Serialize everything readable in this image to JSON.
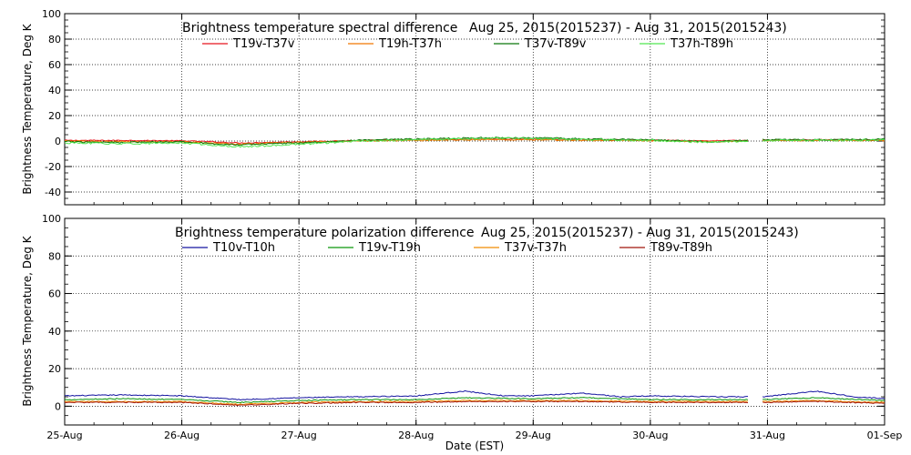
{
  "chart_data": [
    {
      "type": "line",
      "title": "Brightness temperature spectral difference",
      "date_range": "Aug 25, 2015(2015237) - Aug 31, 2015(2015243)",
      "xlabel": "",
      "ylabel": "Brightness Temperature, Deg K",
      "xlim": [
        "2015-08-25",
        "2015-09-01"
      ],
      "ylim": [
        -50,
        100
      ],
      "yticks": [
        -40,
        -20,
        0,
        20,
        40,
        60,
        80,
        100
      ],
      "grid": true,
      "legend_position": "top",
      "gaps": [
        [
          "2015-08-30T20:00",
          "2015-08-30T23:00"
        ]
      ],
      "series": [
        {
          "name": "T19v-T37v",
          "color": "#e8141e",
          "points": [
            [
              "2015-08-25T00:00",
              0.5
            ],
            [
              "2015-08-25T12:00",
              0.5
            ],
            [
              "2015-08-26T00:00",
              0.2
            ],
            [
              "2015-08-26T06:00",
              -0.5
            ],
            [
              "2015-08-26T12:00",
              -1.5
            ],
            [
              "2015-08-26T18:00",
              -1.0
            ],
            [
              "2015-08-27T00:00",
              -0.5
            ],
            [
              "2015-08-27T12:00",
              0.5
            ],
            [
              "2015-08-28T00:00",
              1.0
            ],
            [
              "2015-08-28T12:00",
              1.5
            ],
            [
              "2015-08-29T00:00",
              1.5
            ],
            [
              "2015-08-29T12:00",
              1.0
            ],
            [
              "2015-08-30T00:00",
              0.8
            ],
            [
              "2015-08-30T12:00",
              0.2
            ],
            [
              "2015-08-30T20:00",
              0.5
            ],
            [
              "2015-08-30T23:00",
              0.8
            ],
            [
              "2015-08-31T12:00",
              1.0
            ],
            [
              "2015-09-01T00:00",
              0.8
            ]
          ]
        },
        {
          "name": "T19h-T37h",
          "color": "#f07800",
          "points": [
            [
              "2015-08-25T00:00",
              0.0
            ],
            [
              "2015-08-25T12:00",
              -0.5
            ],
            [
              "2015-08-26T00:00",
              -0.5
            ],
            [
              "2015-08-26T06:00",
              -1.5
            ],
            [
              "2015-08-26T12:00",
              -2.5
            ],
            [
              "2015-08-26T18:00",
              -1.5
            ],
            [
              "2015-08-27T00:00",
              -1.0
            ],
            [
              "2015-08-27T12:00",
              0.0
            ],
            [
              "2015-08-28T00:00",
              0.5
            ],
            [
              "2015-08-28T12:00",
              1.0
            ],
            [
              "2015-08-29T00:00",
              1.0
            ],
            [
              "2015-08-29T12:00",
              0.5
            ],
            [
              "2015-08-30T00:00",
              0.3
            ],
            [
              "2015-08-30T12:00",
              -0.5
            ],
            [
              "2015-08-30T20:00",
              0.0
            ],
            [
              "2015-08-30T23:00",
              0.3
            ],
            [
              "2015-08-31T12:00",
              0.5
            ],
            [
              "2015-09-01T00:00",
              0.5
            ]
          ]
        },
        {
          "name": "T37v-T89v",
          "color": "#0a780a",
          "points": [
            [
              "2015-08-25T00:00",
              -0.5
            ],
            [
              "2015-08-25T12:00",
              -1.0
            ],
            [
              "2015-08-26T00:00",
              -0.5
            ],
            [
              "2015-08-26T06:00",
              -2.0
            ],
            [
              "2015-08-26T12:00",
              -3.0
            ],
            [
              "2015-08-26T18:00",
              -2.0
            ],
            [
              "2015-08-27T00:00",
              -1.5
            ],
            [
              "2015-08-27T12:00",
              0.5
            ],
            [
              "2015-08-28T00:00",
              1.5
            ],
            [
              "2015-08-28T12:00",
              2.5
            ],
            [
              "2015-08-29T00:00",
              2.5
            ],
            [
              "2015-08-29T12:00",
              1.5
            ],
            [
              "2015-08-30T00:00",
              1.0
            ],
            [
              "2015-08-30T12:00",
              -0.5
            ],
            [
              "2015-08-30T20:00",
              0.5
            ],
            [
              "2015-08-30T23:00",
              1.0
            ],
            [
              "2015-08-31T12:00",
              1.0
            ],
            [
              "2015-09-01T00:00",
              1.5
            ]
          ]
        },
        {
          "name": "T37h-T89h",
          "color": "#50e650",
          "points": [
            [
              "2015-08-25T00:00",
              -1.5
            ],
            [
              "2015-08-25T12:00",
              -2.0
            ],
            [
              "2015-08-26T00:00",
              -1.5
            ],
            [
              "2015-08-26T06:00",
              -3.0
            ],
            [
              "2015-08-26T12:00",
              -4.5
            ],
            [
              "2015-08-26T18:00",
              -3.5
            ],
            [
              "2015-08-27T00:00",
              -2.5
            ],
            [
              "2015-08-27T12:00",
              0.0
            ],
            [
              "2015-08-28T00:00",
              1.0
            ],
            [
              "2015-08-28T12:00",
              2.0
            ],
            [
              "2015-08-29T00:00",
              2.0
            ],
            [
              "2015-08-29T12:00",
              1.0
            ],
            [
              "2015-08-30T00:00",
              0.5
            ],
            [
              "2015-08-30T12:00",
              -1.0
            ],
            [
              "2015-08-30T20:00",
              0.0
            ],
            [
              "2015-08-30T23:00",
              0.5
            ],
            [
              "2015-08-31T12:00",
              0.5
            ],
            [
              "2015-09-01T00:00",
              1.0
            ]
          ]
        }
      ]
    },
    {
      "type": "line",
      "title": "Brightness temperature polarization difference",
      "date_range": "Aug 25, 2015(2015237) - Aug 31, 2015(2015243)",
      "xlabel": "Date (EST)",
      "ylabel": "Brightness Temperature, Deg K",
      "xlim": [
        "2015-08-25",
        "2015-09-01"
      ],
      "ylim": [
        -10,
        100
      ],
      "yticks": [
        0,
        20,
        40,
        60,
        80,
        100
      ],
      "xticks": [
        {
          "date": "2015-08-25",
          "label": "25-Aug"
        },
        {
          "date": "2015-08-26",
          "label": "26-Aug"
        },
        {
          "date": "2015-08-27",
          "label": "27-Aug"
        },
        {
          "date": "2015-08-28",
          "label": "28-Aug"
        },
        {
          "date": "2015-08-29",
          "label": "29-Aug"
        },
        {
          "date": "2015-08-30",
          "label": "30-Aug"
        },
        {
          "date": "2015-08-31",
          "label": "31-Aug"
        },
        {
          "date": "2015-09-01",
          "label": "01-Sep"
        }
      ],
      "grid": true,
      "legend_position": "top",
      "gaps": [
        [
          "2015-08-30T20:00",
          "2015-08-30T23:00"
        ]
      ],
      "series": [
        {
          "name": "T10v-T10h",
          "color": "#1414a0",
          "points": [
            [
              "2015-08-25T00:00",
              5.5
            ],
            [
              "2015-08-25T12:00",
              6.0
            ],
            [
              "2015-08-26T00:00",
              5.5
            ],
            [
              "2015-08-26T12:00",
              3.5
            ],
            [
              "2015-08-27T00:00",
              4.5
            ],
            [
              "2015-08-27T12:00",
              5.0
            ],
            [
              "2015-08-28T00:00",
              5.5
            ],
            [
              "2015-08-28T10:00",
              8.0
            ],
            [
              "2015-08-28T18:00",
              5.5
            ],
            [
              "2015-08-29T00:00",
              5.5
            ],
            [
              "2015-08-29T10:00",
              7.0
            ],
            [
              "2015-08-29T18:00",
              5.0
            ],
            [
              "2015-08-30T00:00",
              5.5
            ],
            [
              "2015-08-30T12:00",
              5.0
            ],
            [
              "2015-08-30T20:00",
              5.0
            ],
            [
              "2015-08-30T23:00",
              5.0
            ],
            [
              "2015-08-31T10:00",
              8.0
            ],
            [
              "2015-08-31T18:00",
              5.0
            ],
            [
              "2015-09-01T00:00",
              4.0
            ]
          ]
        },
        {
          "name": "T19v-T19h",
          "color": "#0a960a",
          "points": [
            [
              "2015-08-25T00:00",
              3.5
            ],
            [
              "2015-08-25T12:00",
              4.0
            ],
            [
              "2015-08-26T00:00",
              3.5
            ],
            [
              "2015-08-26T12:00",
              2.0
            ],
            [
              "2015-08-27T00:00",
              3.0
            ],
            [
              "2015-08-27T12:00",
              3.5
            ],
            [
              "2015-08-28T00:00",
              3.5
            ],
            [
              "2015-08-28T10:00",
              4.5
            ],
            [
              "2015-08-29T00:00",
              4.0
            ],
            [
              "2015-08-29T10:00",
              4.5
            ],
            [
              "2015-08-30T00:00",
              3.5
            ],
            [
              "2015-08-30T20:00",
              3.5
            ],
            [
              "2015-08-30T23:00",
              3.5
            ],
            [
              "2015-08-31T10:00",
              4.5
            ],
            [
              "2015-09-01T00:00",
              3.0
            ]
          ]
        },
        {
          "name": "T37v-T37h",
          "color": "#f08c00",
          "points": [
            [
              "2015-08-25T00:00",
              2.5
            ],
            [
              "2015-08-25T12:00",
              2.5
            ],
            [
              "2015-08-26T00:00",
              2.5
            ],
            [
              "2015-08-26T12:00",
              1.0
            ],
            [
              "2015-08-27T00:00",
              2.0
            ],
            [
              "2015-08-27T12:00",
              2.5
            ],
            [
              "2015-08-28T00:00",
              2.5
            ],
            [
              "2015-08-28T10:00",
              3.0
            ],
            [
              "2015-08-29T00:00",
              3.0
            ],
            [
              "2015-08-29T10:00",
              3.0
            ],
            [
              "2015-08-30T00:00",
              2.5
            ],
            [
              "2015-08-30T20:00",
              2.5
            ],
            [
              "2015-08-30T23:00",
              2.5
            ],
            [
              "2015-08-31T10:00",
              3.0
            ],
            [
              "2015-09-01T00:00",
              2.0
            ]
          ]
        },
        {
          "name": "T89v-T89h",
          "color": "#a0140a",
          "points": [
            [
              "2015-08-25T00:00",
              2.0
            ],
            [
              "2015-08-25T12:00",
              2.0
            ],
            [
              "2015-08-26T00:00",
              2.0
            ],
            [
              "2015-08-26T12:00",
              0.5
            ],
            [
              "2015-08-27T00:00",
              1.5
            ],
            [
              "2015-08-27T12:00",
              2.0
            ],
            [
              "2015-08-28T00:00",
              2.0
            ],
            [
              "2015-08-28T10:00",
              2.5
            ],
            [
              "2015-08-29T00:00",
              2.5
            ],
            [
              "2015-08-29T10:00",
              2.5
            ],
            [
              "2015-08-30T00:00",
              2.0
            ],
            [
              "2015-08-30T20:00",
              2.0
            ],
            [
              "2015-08-30T23:00",
              2.0
            ],
            [
              "2015-08-31T10:00",
              2.5
            ],
            [
              "2015-09-01T00:00",
              1.5
            ]
          ]
        }
      ]
    }
  ]
}
